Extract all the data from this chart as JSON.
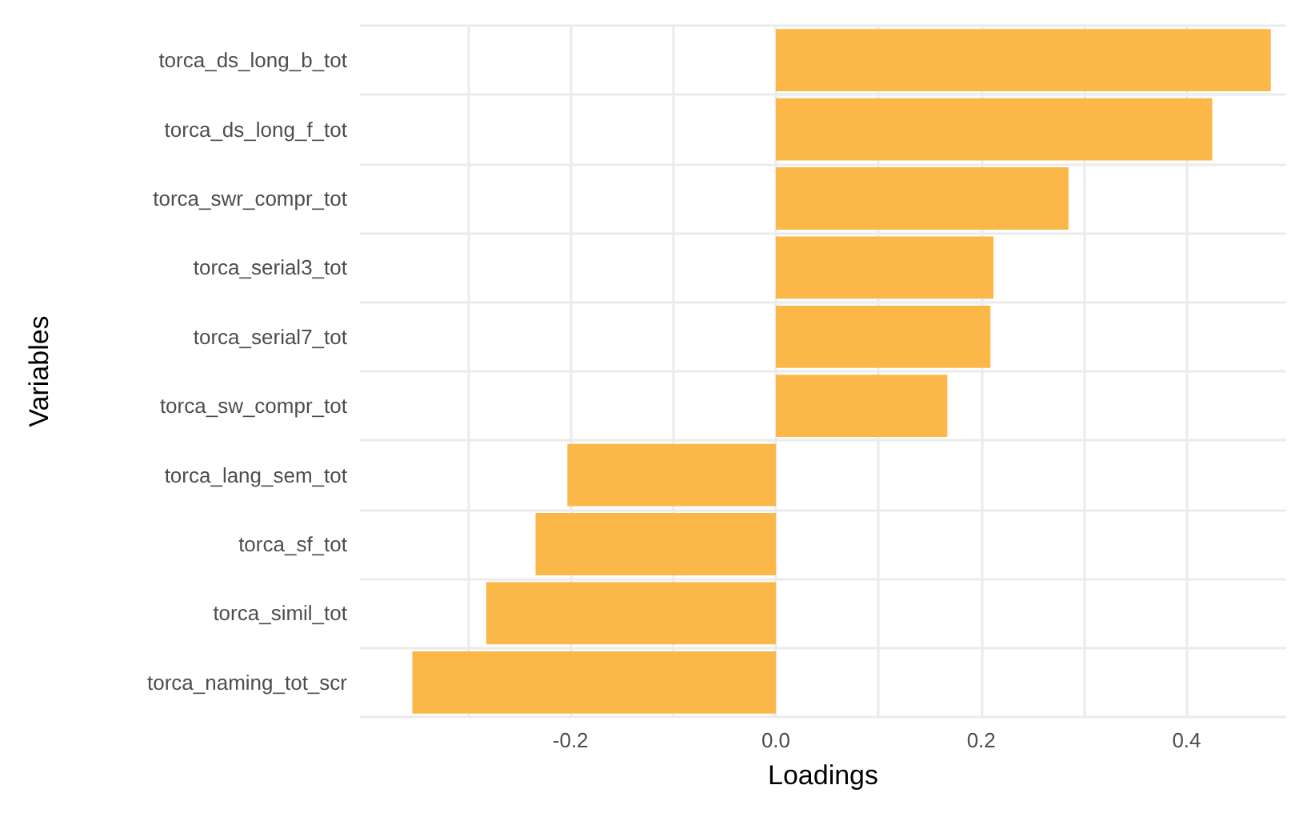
{
  "chart_data": {
    "type": "bar",
    "orientation": "horizontal",
    "xlabel": "Loadings",
    "ylabel": "Variables",
    "categories": [
      "torca_ds_long_b_tot",
      "torca_ds_long_f_tot",
      "torca_swr_compr_tot",
      "torca_serial3_tot",
      "torca_serial7_tot",
      "torca_sw_compr_tot",
      "torca_lang_sem_tot",
      "torca_sf_tot",
      "torca_simil_tot",
      "torca_naming_tot_scr"
    ],
    "values": [
      0.482,
      0.425,
      0.285,
      0.212,
      0.209,
      0.167,
      -0.203,
      -0.234,
      -0.282,
      -0.354
    ],
    "color": "#fbb848",
    "xlim": [
      -0.405,
      0.497
    ],
    "xticks": [
      {
        "value": -0.3,
        "label": null
      },
      {
        "value": -0.2,
        "label": "-0.2"
      },
      {
        "value": -0.1,
        "label": null
      },
      {
        "value": 0,
        "label": "0.0"
      },
      {
        "value": 0.1,
        "label": null
      },
      {
        "value": 0.2,
        "label": "0.2"
      },
      {
        "value": 0.3,
        "label": null
      },
      {
        "value": 0.4,
        "label": "0.4"
      }
    ],
    "grid": true
  }
}
